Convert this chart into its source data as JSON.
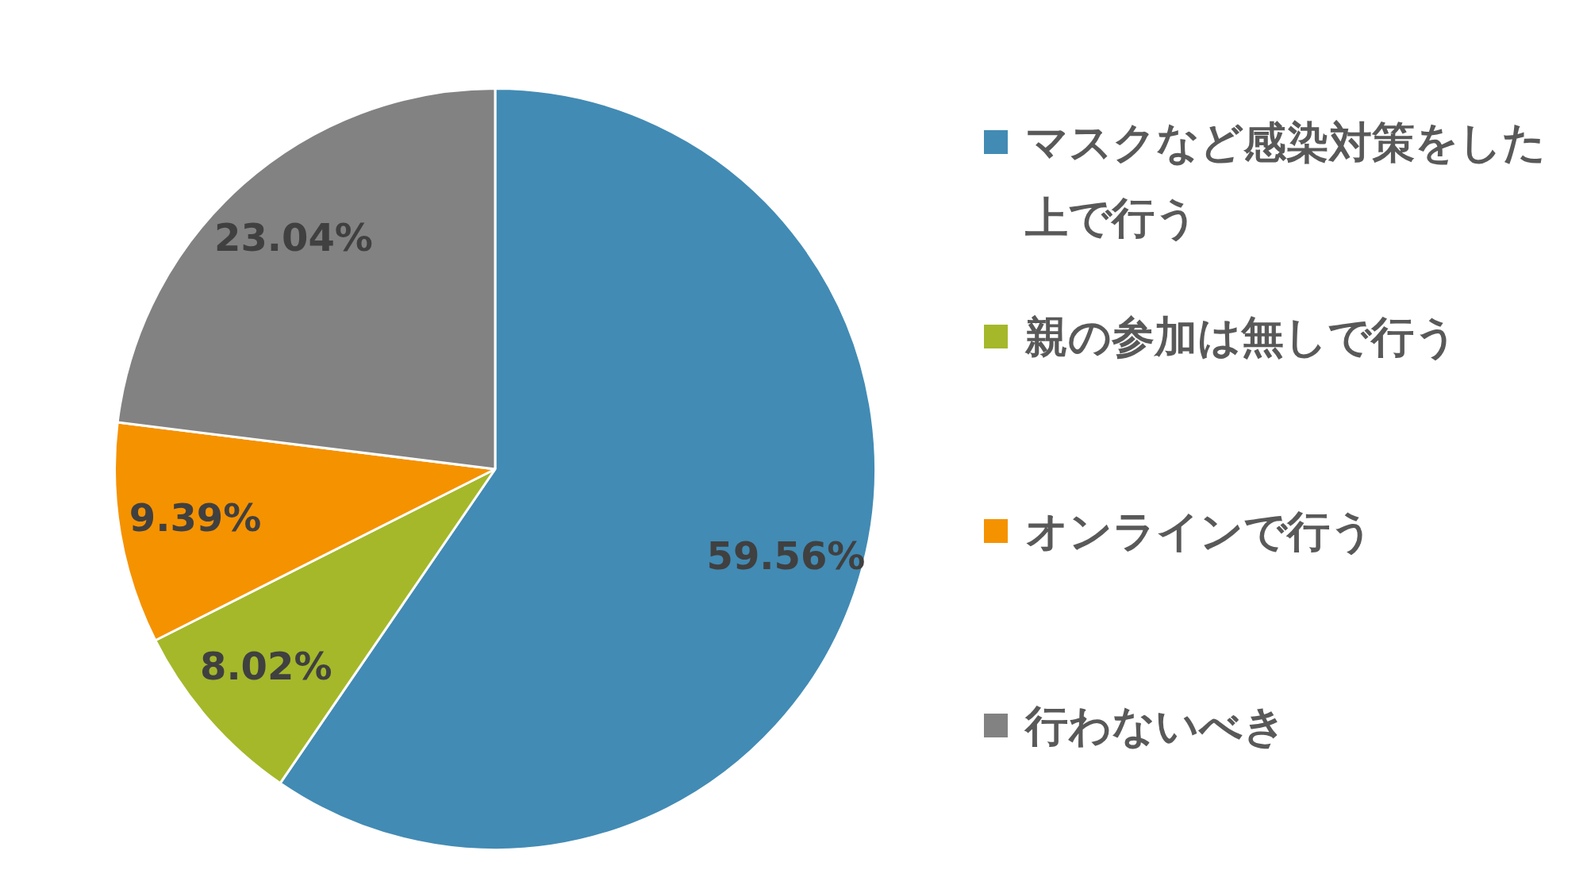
{
  "chart_data": {
    "type": "pie",
    "categories": [
      "マスクなど感染対策をした上で行う",
      "親の参加は無しで行う",
      "オンラインで行う",
      "行わないべき"
    ],
    "values": [
      59.56,
      8.02,
      9.39,
      23.04
    ],
    "value_labels": [
      "59.56%",
      "8.02%",
      "9.39%",
      "23.04%"
    ],
    "colors": [
      "#428bb4",
      "#a5b82a",
      "#f59200",
      "#828282"
    ],
    "legend": "right"
  }
}
